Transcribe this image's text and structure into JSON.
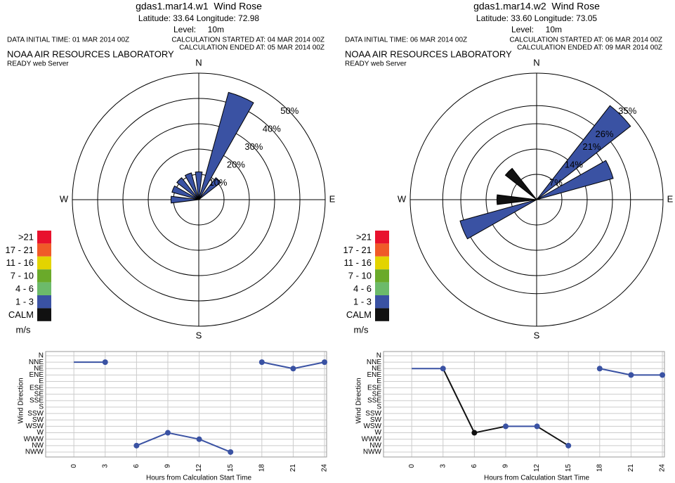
{
  "chart_data": [
    {
      "type": "rose",
      "title": "gdas1.mar14.w1  Wind Rose",
      "location": "Latitude: 33.64 Longitude: 72.98",
      "level": "Level:     10m",
      "initial_time": "DATA INITIAL TIME: 01 MAR 2014 00Z",
      "started": "CALCULATION STARTED AT: 04 MAR 2014 00Z",
      "ended": "CALCULATION ENDED AT: 05 MAR 2014 00Z",
      "lab": "NOAA AIR RESOURCES LABORATORY",
      "server": "READY web Server",
      "compass": [
        "N",
        "E",
        "S",
        "W"
      ],
      "rlim": [
        0,
        50
      ],
      "rticks": [
        {
          "value": 10,
          "label": "10%"
        },
        {
          "value": 20,
          "label": "20%"
        },
        {
          "value": 30,
          "label": "30%"
        },
        {
          "value": 40,
          "label": "40%"
        },
        {
          "value": 50,
          "label": "50%"
        }
      ],
      "angles": [
        0,
        22.5,
        45,
        270,
        292.5,
        315,
        337.5
      ],
      "values": [
        11,
        44,
        11,
        11,
        11,
        11,
        11
      ],
      "colors": [
        "#3a52a3",
        "#3a52a3",
        "#3a52a3",
        "#3a52a3",
        "#3a52a3",
        "#3a52a3",
        "#3a52a3"
      ],
      "legend": {
        "labels": [
          ">21",
          "17 - 21",
          "11 - 16",
          "7 - 10",
          "4 - 6",
          "1 - 3",
          "CALM"
        ],
        "colors": [
          "#e8112d",
          "#f05a28",
          "#e3d400",
          "#6aaa2a",
          "#6cba6a",
          "#3a52a3",
          "#111111"
        ],
        "unit": "m/s"
      }
    },
    {
      "type": "line",
      "ylabel": "Wind Direction",
      "xlabel": "Hours from Calculation Start Time",
      "ycategories": [
        "N",
        "NNE",
        "NE",
        "ENE",
        "E",
        "ESE",
        "SE",
        "SSE",
        "S",
        "SSW",
        "SW",
        "WSW",
        "W",
        "WWW",
        "NW",
        "NWW"
      ],
      "xlim": [
        -2.7,
        24.2
      ],
      "xticks": [
        0,
        3,
        6,
        9,
        12,
        15,
        18,
        21,
        24
      ],
      "grid": true,
      "x": [
        0,
        3,
        6,
        9,
        12,
        15,
        18,
        21,
        24
      ],
      "values": [
        "NNE",
        "NNE",
        "NW",
        "W",
        "WWW",
        "NWW",
        "NNE",
        "NE",
        "NNE"
      ],
      "segment_colors": [
        "#3a52a3",
        null,
        "#3a52a3",
        "#3a52a3",
        "#3a52a3",
        null,
        "#3a52a3",
        "#3a52a3"
      ],
      "point_colors": [
        null,
        "#3a52a3",
        "#3a52a3",
        "#3a52a3",
        "#3a52a3",
        "#3a52a3",
        "#3a52a3",
        "#3a52a3",
        "#3a52a3"
      ]
    },
    {
      "type": "rose",
      "title": "gdas1.mar14.w2  Wind Rose",
      "location": "Latitude: 33.60 Longitude: 73.05",
      "level": "Level:     10m",
      "initial_time": "DATA INITIAL TIME: 06 MAR 2014 00Z",
      "started": "CALCULATION STARTED AT: 06 MAR 2014 00Z",
      "ended": "CALCULATION ENDED AT: 09 MAR 2014 00Z",
      "lab": "NOAA AIR RESOURCES LABORATORY",
      "server": "READY web Server",
      "compass": [
        "N",
        "E",
        "S",
        "W"
      ],
      "rlim": [
        0,
        35
      ],
      "rticks": [
        {
          "value": 7,
          "label": "7%"
        },
        {
          "value": 14,
          "label": "14%"
        },
        {
          "value": 21,
          "label": "21%"
        },
        {
          "value": 26,
          "label": "26%"
        },
        {
          "value": 35,
          "label": "35%"
        }
      ],
      "angles": [
        45,
        67.5,
        247.5,
        270,
        315
      ],
      "values": [
        33,
        22,
        22,
        11,
        11
      ],
      "colors": [
        "#3a52a3",
        "#3a52a3",
        "#3a52a3",
        "#111111",
        "#111111"
      ],
      "legend": {
        "labels": [
          ">21",
          "17 - 21",
          "11 - 16",
          "7 - 10",
          "4 - 6",
          "1 - 3",
          "CALM"
        ],
        "colors": [
          "#e8112d",
          "#f05a28",
          "#e3d400",
          "#6aaa2a",
          "#6cba6a",
          "#3a52a3",
          "#111111"
        ],
        "unit": "m/s"
      }
    },
    {
      "type": "line",
      "ylabel": "Wind Direction",
      "xlabel": "Hours from Calculation Start Time",
      "ycategories": [
        "N",
        "NNE",
        "NE",
        "ENE",
        "E",
        "ESE",
        "SE",
        "SSE",
        "S",
        "SSW",
        "SW",
        "WSW",
        "W",
        "WWW",
        "NW",
        "NWW"
      ],
      "xlim": [
        -2.7,
        24.2
      ],
      "xticks": [
        0,
        3,
        6,
        9,
        12,
        15,
        18,
        21,
        24
      ],
      "grid": true,
      "x": [
        0,
        3,
        6,
        9,
        12,
        15,
        18,
        21,
        24
      ],
      "values": [
        "NE",
        "NE",
        "W",
        "WSW",
        "WSW",
        "NW",
        "NE",
        "ENE",
        "ENE"
      ],
      "segment_colors": [
        "#3a52a3",
        "#111111",
        "#111111",
        "#3a52a3",
        "#111111",
        null,
        "#3a52a3",
        "#3a52a3"
      ],
      "point_colors": [
        null,
        "#3a52a3",
        "#111111",
        "#3a52a3",
        "#3a52a3",
        "#3a52a3",
        "#3a52a3",
        "#3a52a3",
        "#3a52a3"
      ]
    }
  ]
}
